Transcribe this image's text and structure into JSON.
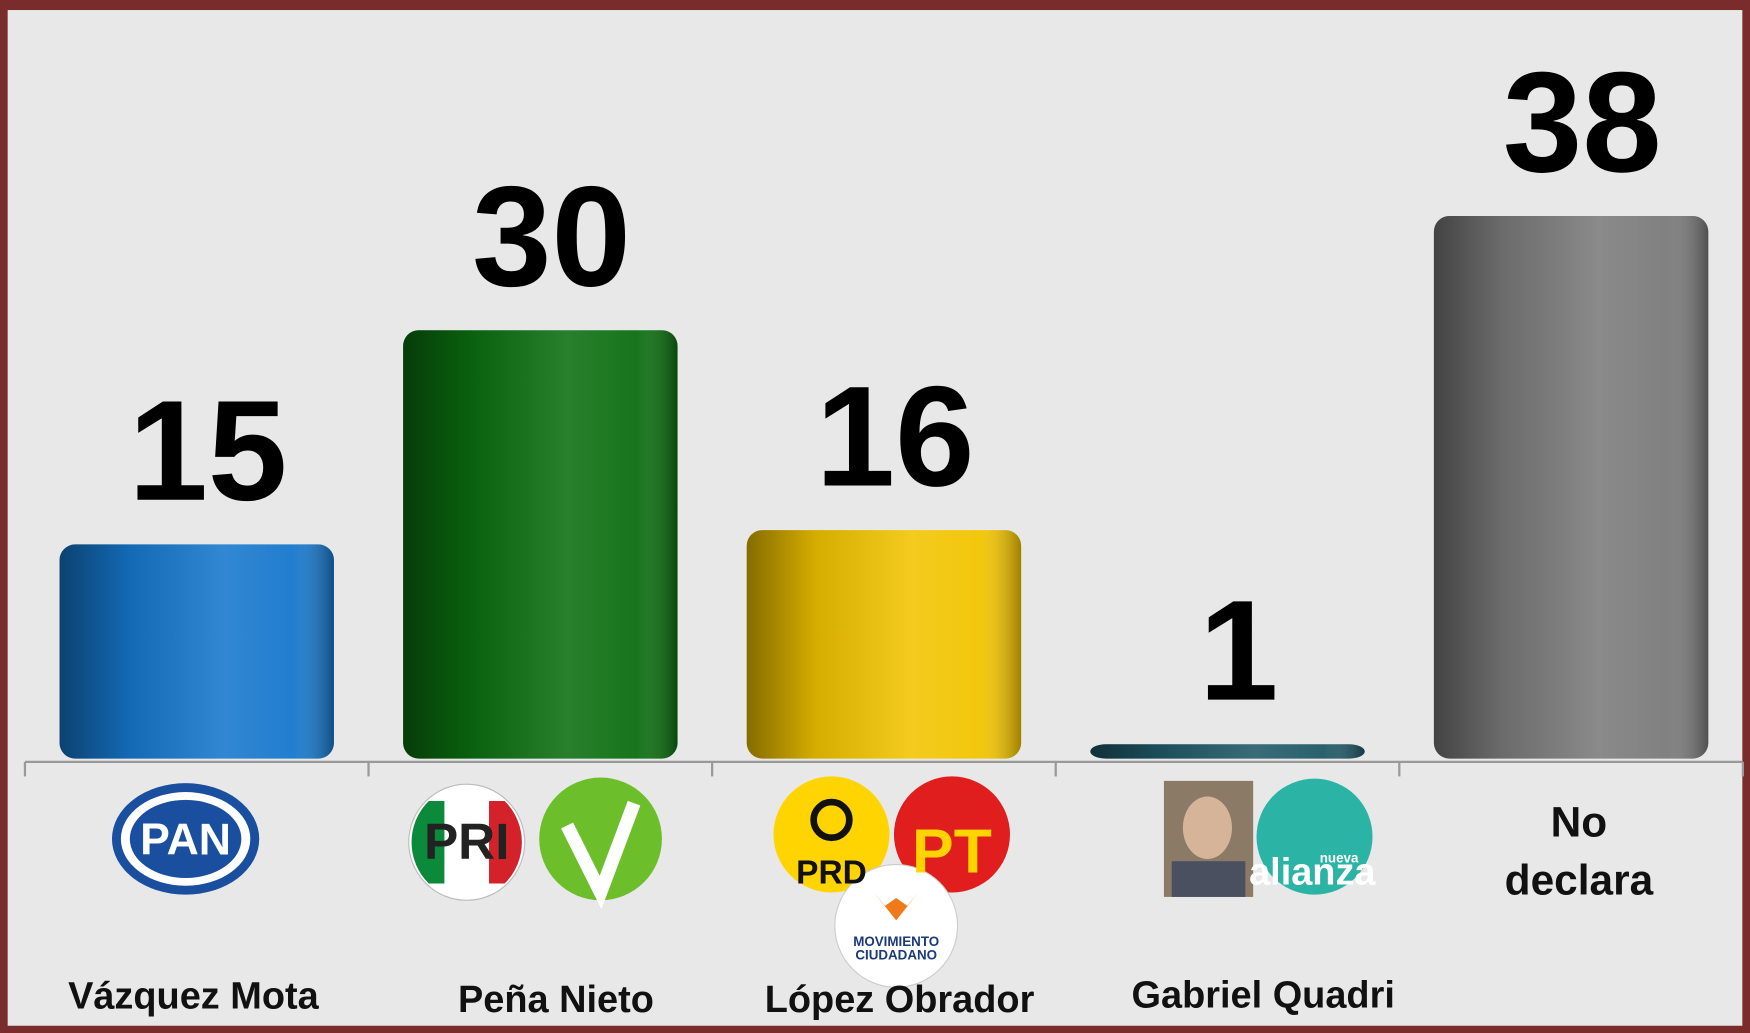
{
  "chart_data": {
    "type": "bar",
    "categories": [
      "Vázquez Mota",
      "Peña Nieto",
      "López Obrador",
      "Gabriel Quadri",
      "No declara"
    ],
    "values": [
      15,
      30,
      16,
      1,
      38
    ],
    "colors": [
      "#1677cc",
      "#0b6e10",
      "#f2c400",
      "#1f5866",
      "#7a7a7a"
    ],
    "ylim": [
      0,
      50
    ],
    "logos": [
      [
        "PAN"
      ],
      [
        "PRI"
      ],
      [
        "PRD",
        "PT",
        "MOVIMIENTO",
        "CIUDADANO"
      ],
      [
        "nueva",
        "alianza"
      ],
      []
    ]
  }
}
